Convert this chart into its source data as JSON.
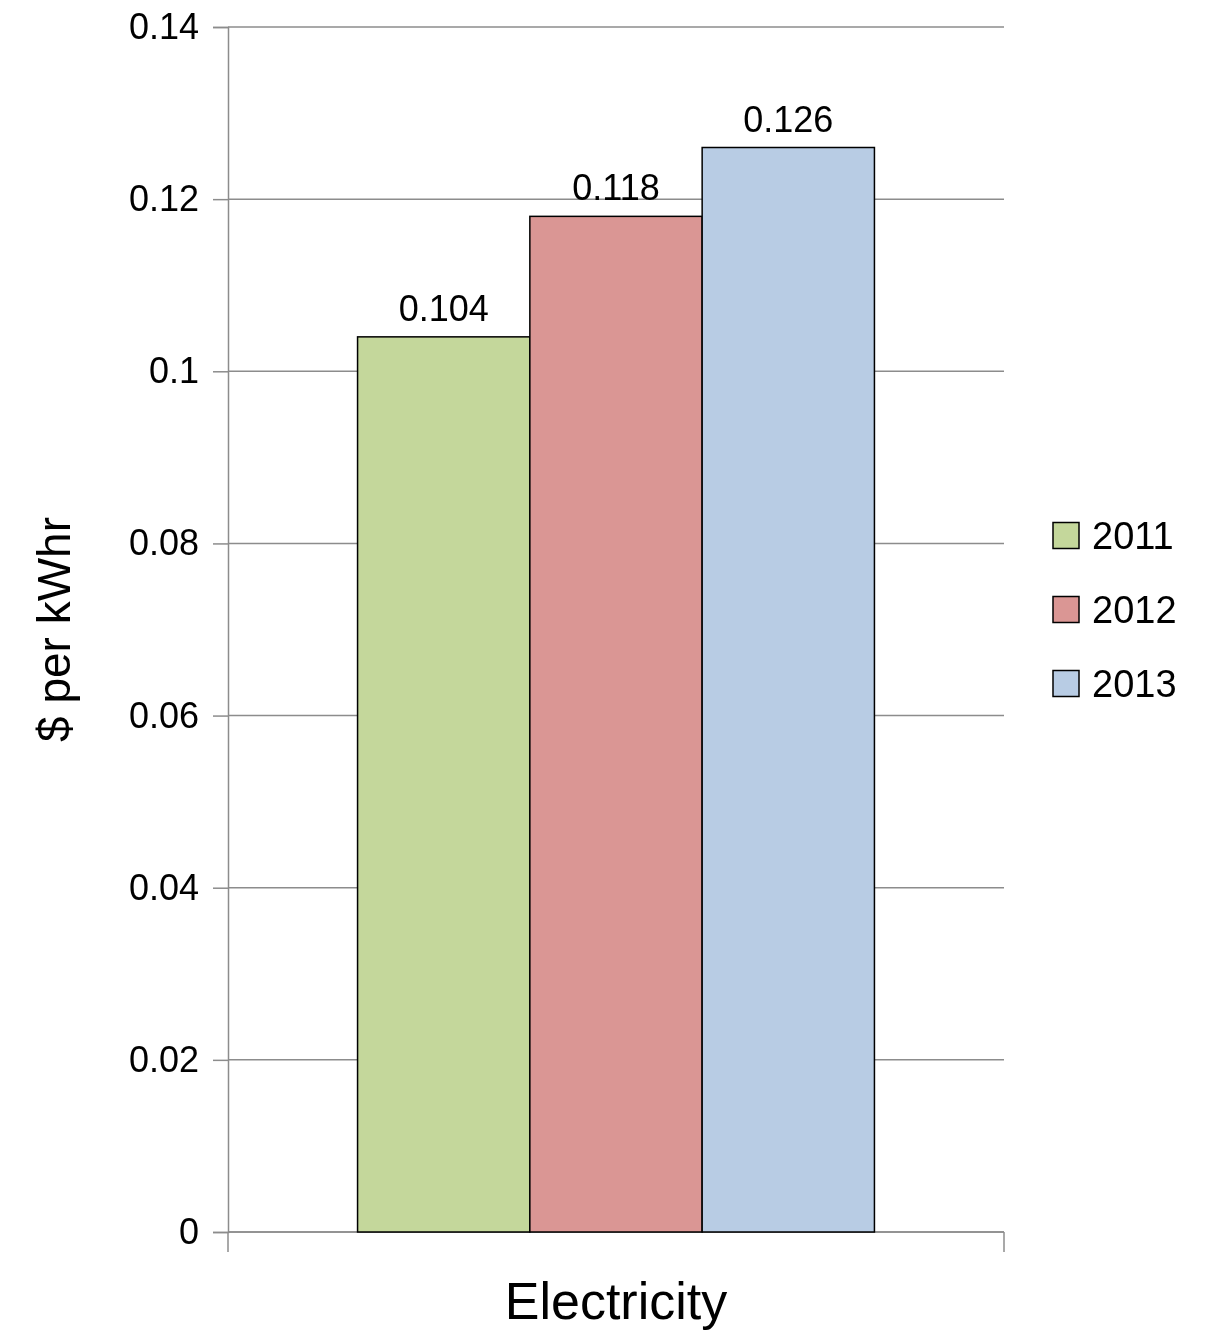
{
  "chart_data": {
    "type": "bar",
    "ylabel": "$ per kWhr",
    "categories": [
      null,
      "Electricity",
      null
    ],
    "stacked": true,
    "series": [
      {
        "name": "2011",
        "color": "#c4d79b",
        "values": [
          0.104,
          null,
          null
        ]
      },
      {
        "name": "2012",
        "color": "#da9694",
        "values": [
          null,
          0.118,
          null
        ]
      },
      {
        "name": "2013",
        "color": "#b8cce4",
        "values": [
          null,
          null,
          0.126
        ]
      }
    ],
    "ylim": [
      0,
      0.14
    ],
    "yticks": [
      0,
      0.02,
      0.04,
      0.06,
      0.08,
      0.1,
      0.12,
      0.14
    ],
    "grid": "y",
    "legend": "right",
    "data_labels": true
  }
}
